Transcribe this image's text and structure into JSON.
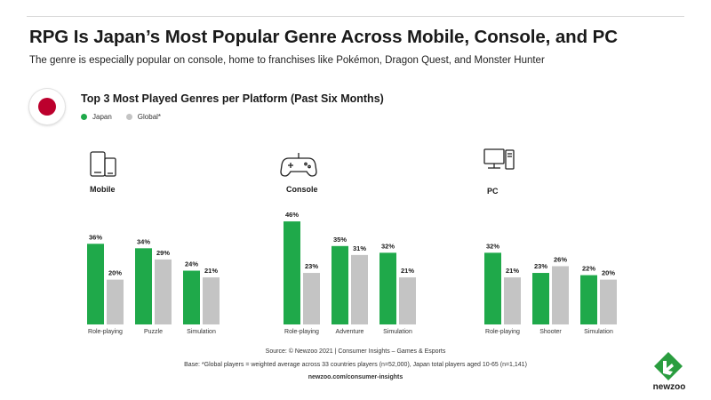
{
  "header": {
    "title": "RPG Is Japan’s Most Popular Genre Across Mobile, Console, and PC",
    "subtitle": "The genre is especially popular on console, home to franchises like Pokémon, Dragon Quest, and Monster Hunter"
  },
  "legend": {
    "japan": "Japan",
    "global": "Global*"
  },
  "colors": {
    "japan": "#1fa94a",
    "global": "#c4c4c4",
    "flag_red": "#bc002d",
    "logo_green": "#2a9d3f"
  },
  "icons": {
    "mobile": "phone-tablet-icon",
    "console": "gamepad-icon",
    "pc": "desktop-computer-icon",
    "flag": "japan-flag-icon"
  },
  "chart_data": {
    "type": "bar",
    "title": "Top 3 Most Played Genres per Platform (Past Six Months)",
    "unit": "%",
    "series_names": [
      "Japan",
      "Global*"
    ],
    "panels": [
      {
        "name": "Mobile",
        "categories": [
          "Role-playing",
          "Puzzle",
          "Simulation"
        ],
        "series": [
          {
            "name": "Japan",
            "values": [
              36,
              34,
              24
            ]
          },
          {
            "name": "Global*",
            "values": [
              20,
              29,
              21
            ]
          }
        ]
      },
      {
        "name": "Console",
        "categories": [
          "Role-playing",
          "Adventure",
          "Simulation"
        ],
        "series": [
          {
            "name": "Japan",
            "values": [
              46,
              35,
              32
            ]
          },
          {
            "name": "Global*",
            "values": [
              23,
              31,
              21
            ]
          }
        ]
      },
      {
        "name": "PC",
        "categories": [
          "Role-playing",
          "Shooter",
          "Simulation"
        ],
        "series": [
          {
            "name": "Japan",
            "values": [
              32,
              23,
              22
            ]
          },
          {
            "name": "Global*",
            "values": [
              21,
              26,
              20
            ]
          }
        ]
      }
    ]
  },
  "footer": {
    "source": "Source: © Newzoo 2021 | Consumer Insights – Games & Esports",
    "base": "Base: *Global players = weighted average across 33 countries players (n=52,000),  Japan total players aged 10-65 (n=1,141)",
    "url": "newzoo.com/consumer-insights"
  },
  "logo": {
    "text": "newzoo"
  }
}
